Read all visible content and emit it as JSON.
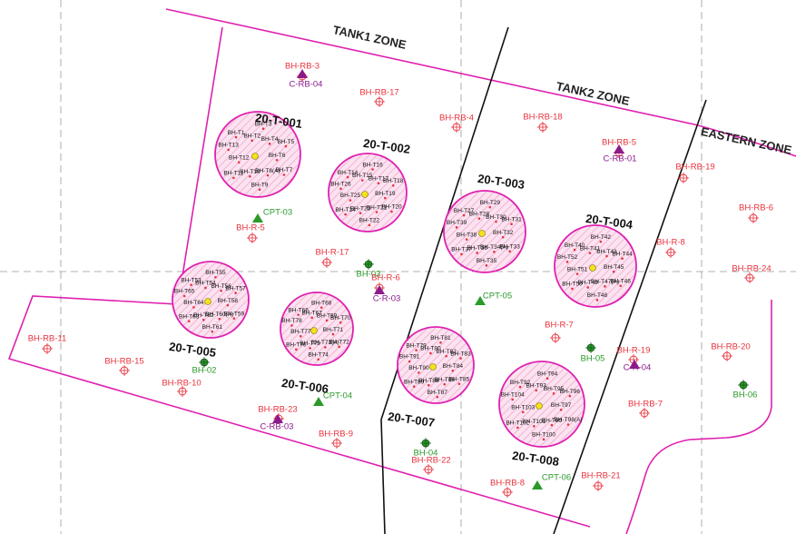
{
  "zones": [
    "TANK1 ZONE",
    "TANK2 ZONE",
    "EASTERN ZONE"
  ],
  "tanks": [
    {
      "name": "20-T-001",
      "boreholes": [
        "BH-T1",
        "BH-T2",
        "BH-T3",
        "BH-T4",
        "BH-T5",
        "BH-T6",
        "BH-T7",
        "BH-T8(A)",
        "BH-T9",
        "BH-T10",
        "BH-T11",
        "BH-T12",
        "BH-T13"
      ]
    },
    {
      "name": "20-T-002",
      "boreholes": [
        "BH-T14",
        "BH-T15",
        "BH-T16",
        "BH-T17",
        "BH-T18",
        "BH-T19",
        "BH-T20",
        "BH-T21",
        "BH-T22",
        "BH-T23",
        "BH-T24",
        "BH-T25",
        "BH-T26"
      ]
    },
    {
      "name": "20-T-003",
      "boreholes": [
        "BH-T27",
        "BH-T28",
        "BH-T29",
        "BH-T30",
        "BH-T31",
        "BH-T32",
        "BH-T33",
        "BH-T34(A)",
        "BH-T35",
        "BH-T36",
        "BH-T37",
        "BH-T38",
        "BH-T39"
      ]
    },
    {
      "name": "20-T-004",
      "boreholes": [
        "BH-T40",
        "BH-T41",
        "BH-T42",
        "BH-T43",
        "BH-T44",
        "BH-T45",
        "BH-T46",
        "BH-T47(A)",
        "BH-T48",
        "BH-T49",
        "BH-T50",
        "BH-T51",
        "BH-T52"
      ]
    },
    {
      "name": "20-T-005",
      "boreholes": [
        "BH-T53",
        "BH-T54",
        "BH-T55",
        "BH-T56",
        "BH-T57",
        "BH-T58",
        "BH-T59",
        "BH-T60(A)",
        "BH-T61",
        "BH-T62",
        "BH-T63",
        "BH-T64",
        "BH-T65"
      ]
    },
    {
      "name": "20-T-006",
      "boreholes": [
        "BH-T66",
        "BH-T67",
        "BH-T68",
        "BH-T69",
        "BH-T70",
        "BH-T71",
        "BH-T72",
        "BH-T73(A)",
        "BH-T74",
        "BH-T75",
        "BH-T76",
        "BH-T77",
        "BH-T78"
      ]
    },
    {
      "name": "20-T-007",
      "boreholes": [
        "BH-T79",
        "BH-T80",
        "BH-T81",
        "BH-T82",
        "BH-T83",
        "BH-T84",
        "BH-T85",
        "BH-T86",
        "BH-T87",
        "BH-T88",
        "BH-T89",
        "BH-T90",
        "BH-T91"
      ]
    },
    {
      "name": "20-T-008",
      "boreholes": [
        "BH-T92",
        "BH-T93",
        "BH-T94",
        "BH-T95",
        "BH-T96",
        "BH-T97",
        "BH-T98(A)",
        "BH-T99",
        "BH-T100",
        "BH-T101",
        "BH-T102",
        "BH-T103",
        "BH-T104"
      ]
    }
  ],
  "points": [
    {
      "label": "BH-RB-3",
      "kind": "borehole"
    },
    {
      "label": "C-RB-04",
      "kind": "crb"
    },
    {
      "label": "BH-RB-17",
      "kind": "borehole"
    },
    {
      "label": "BH-RB-4",
      "kind": "borehole"
    },
    {
      "label": "BH-RB-18",
      "kind": "borehole"
    },
    {
      "label": "BH-RB-5",
      "kind": "borehole"
    },
    {
      "label": "C-RB-01",
      "kind": "crb"
    },
    {
      "label": "BH-RB-19",
      "kind": "borehole"
    },
    {
      "label": "BH-RB-6",
      "kind": "borehole"
    },
    {
      "label": "BH-R-8",
      "kind": "borehole"
    },
    {
      "label": "BH-RB-24",
      "kind": "borehole"
    },
    {
      "label": "CPT-03",
      "kind": "cpt"
    },
    {
      "label": "BH-R-5",
      "kind": "borehole"
    },
    {
      "label": "BH-R-17",
      "kind": "borehole"
    },
    {
      "label": "BH-03",
      "kind": "bh"
    },
    {
      "label": "BH-R-6",
      "kind": "borehole"
    },
    {
      "label": "C-R-03",
      "kind": "crb"
    },
    {
      "label": "CPT-05",
      "kind": "cpt"
    },
    {
      "label": "BH-R-7",
      "kind": "borehole"
    },
    {
      "label": "BH-05",
      "kind": "bh"
    },
    {
      "label": "BH-R-19",
      "kind": "borehole"
    },
    {
      "label": "C-R-04",
      "kind": "crb"
    },
    {
      "label": "BH-RB-20",
      "kind": "borehole"
    },
    {
      "label": "BH-06",
      "kind": "bh"
    },
    {
      "label": "BH-RB-7",
      "kind": "borehole"
    },
    {
      "label": "BH-RB-11",
      "kind": "borehole"
    },
    {
      "label": "BH-RB-15",
      "kind": "borehole"
    },
    {
      "label": "BH-02",
      "kind": "bh"
    },
    {
      "label": "BH-RB-10",
      "kind": "borehole"
    },
    {
      "label": "CPT-04",
      "kind": "cpt"
    },
    {
      "label": "BH-RB-23",
      "kind": "borehole"
    },
    {
      "label": "C-RB-03",
      "kind": "crb"
    },
    {
      "label": "BH-RB-9",
      "kind": "borehole"
    },
    {
      "label": "BH-04",
      "kind": "bh"
    },
    {
      "label": "BH-RB-22",
      "kind": "borehole"
    },
    {
      "label": "BH-RB-8",
      "kind": "borehole"
    },
    {
      "label": "CPT-06",
      "kind": "cpt"
    },
    {
      "label": "BH-RB-21",
      "kind": "borehole"
    }
  ]
}
